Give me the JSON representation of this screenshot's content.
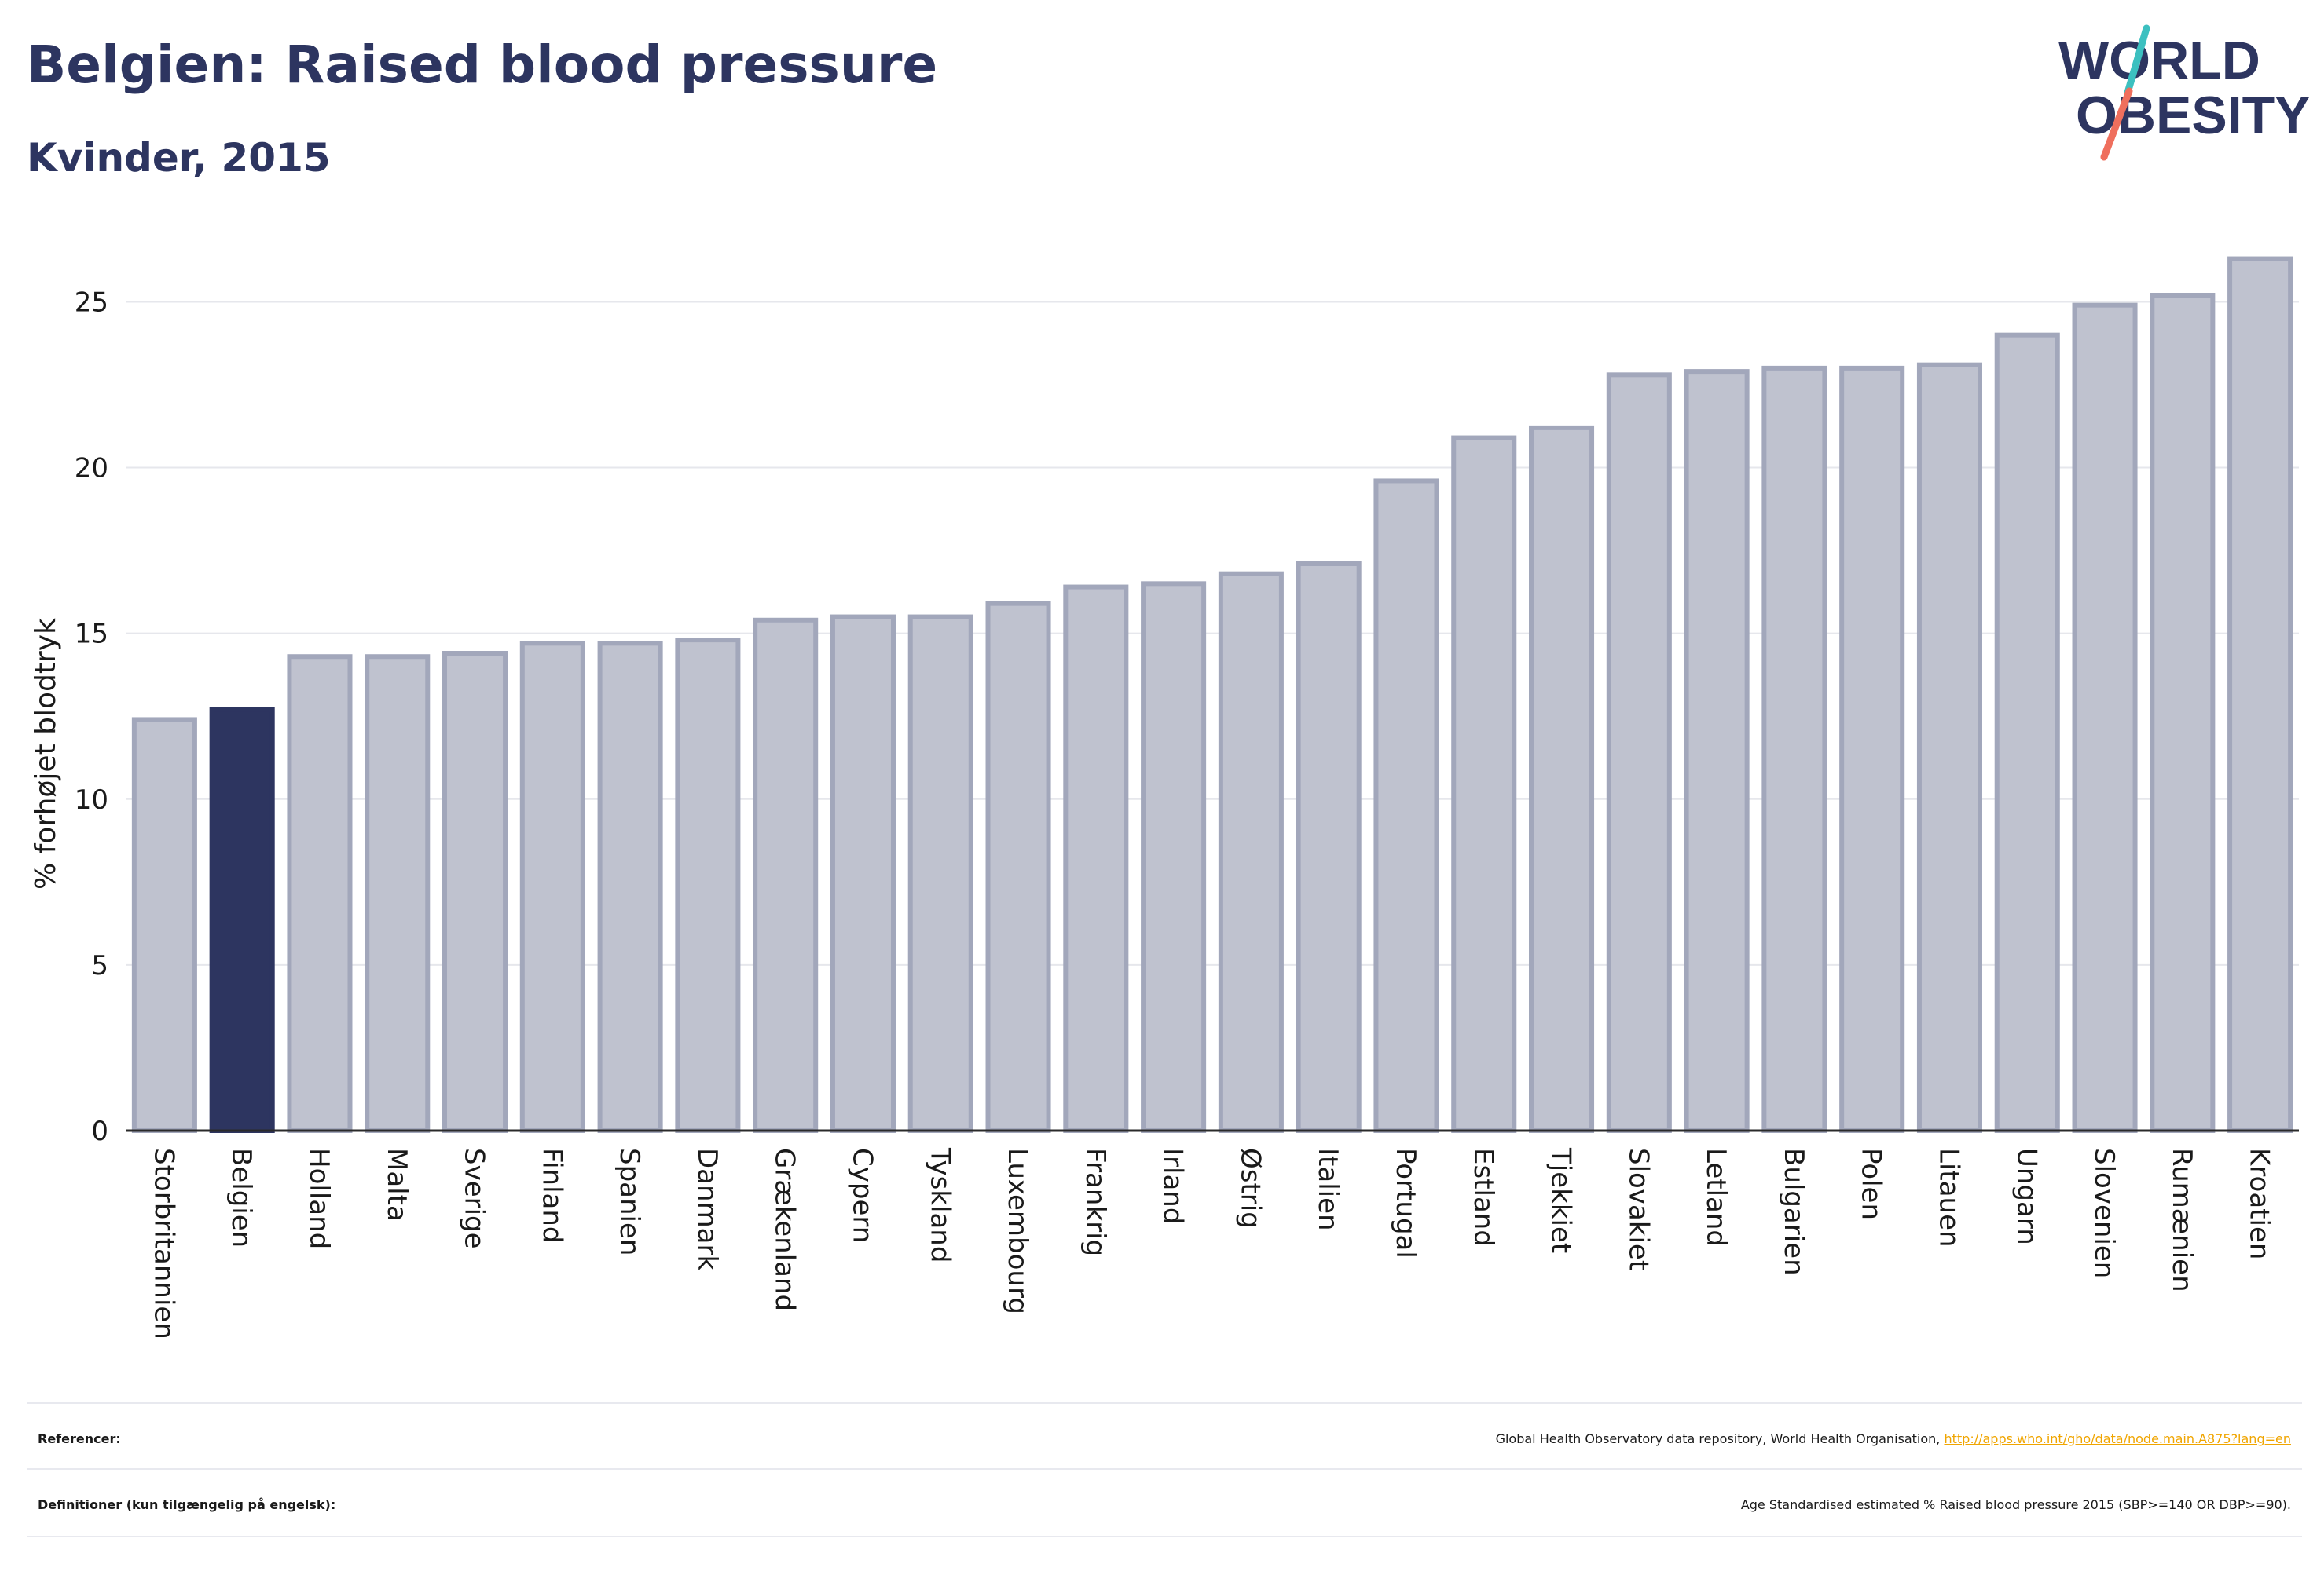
{
  "header": {
    "title": "Belgien: Raised blood pressure",
    "subtitle": "Kvinder, 2015"
  },
  "logo": {
    "line1": "WORLD",
    "line2": "OBESITY",
    "colors": {
      "text": "#2d3560",
      "slash_teal": "#3cc0c0",
      "slash_coral": "#ef6f5d"
    }
  },
  "colors": {
    "bar": "#bfc2cf",
    "bar_stroke": "#a2a7bb",
    "highlight": "#2d3560",
    "grid": "#e6e7ec",
    "axis": "#2a2a2a"
  },
  "chart_data": {
    "type": "bar",
    "title": "",
    "ylabel": "% forhøjet blodtryk",
    "xlabel": "",
    "ylim": [
      0,
      27
    ],
    "yticks": [
      0,
      5,
      10,
      15,
      20,
      25
    ],
    "grid": true,
    "highlight": "Belgien",
    "categories": [
      "Storbritannien",
      "Belgien",
      "Holland",
      "Malta",
      "Sverige",
      "Finland",
      "Spanien",
      "Danmark",
      "Grækenland",
      "Cypern",
      "Tyskland",
      "Luxembourg",
      "Frankrig",
      "Irland",
      "Østrig",
      "Italien",
      "Portugal",
      "Estland",
      "Tjekkiet",
      "Slovakiet",
      "Letland",
      "Bulgarien",
      "Polen",
      "Litauen",
      "Ungarn",
      "Slovenien",
      "Rumænien",
      "Kroatien"
    ],
    "values": [
      12.4,
      12.7,
      14.3,
      14.3,
      14.4,
      14.7,
      14.7,
      14.8,
      15.4,
      15.5,
      15.5,
      15.9,
      16.4,
      16.5,
      16.8,
      17.1,
      19.6,
      20.9,
      21.2,
      22.8,
      22.9,
      23.0,
      23.0,
      23.1,
      24.0,
      24.9,
      25.2,
      26.3
    ]
  },
  "footer": {
    "references_label": "Referencer:",
    "references_text": "Global Health Observatory data repository, World Health Organisation, ",
    "references_link": "http://apps.who.int/gho/data/node.main.A875?lang=en",
    "definitions_label": "Definitioner (kun tilgængelig på engelsk):",
    "definitions_text": "Age Standardised estimated % Raised blood pressure 2015 (SBP>=140 OR DBP>=90)."
  }
}
